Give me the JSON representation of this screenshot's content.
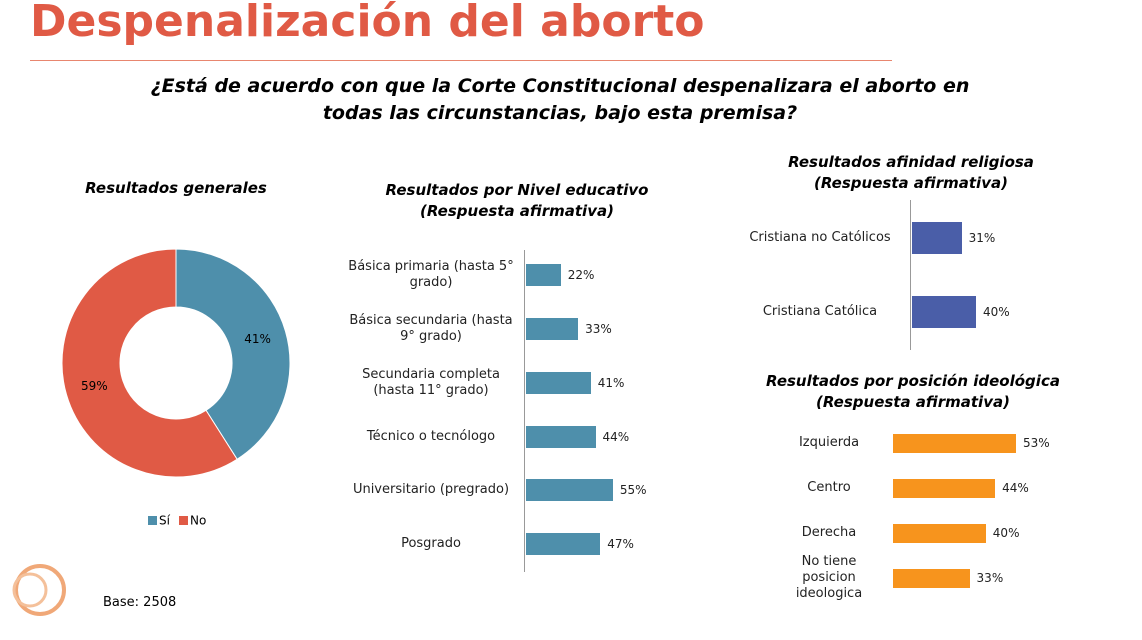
{
  "title": "Despenalización del aborto",
  "question": "¿Está de acuerdo con que la Corte Constitucional despenalizara el aborto en todas las circunstancias, bajo esta premisa?",
  "base": "Base: 2508",
  "chart_data": [
    {
      "type": "donut",
      "title": "Resultados generales",
      "categories": [
        "Sí",
        "No"
      ],
      "values": [
        41,
        59
      ],
      "value_labels": [
        "41%",
        "59%"
      ],
      "colors": [
        "#4e8fab",
        "#e05a45"
      ],
      "legend": "bottom"
    },
    {
      "type": "barh",
      "title": "Resultados por Nivel educativo",
      "subtitle": "(Respuesta afirmativa)",
      "categories": [
        "Básica primaria (hasta 5° grado)",
        "Básica secundaria (hasta 9° grado)",
        "Secundaria completa (hasta 11° grado)",
        "Técnico o tecnólogo",
        "Universitario (pregrado)",
        "Posgrado"
      ],
      "values": [
        22,
        33,
        41,
        44,
        55,
        47
      ],
      "value_labels": [
        "22%",
        "33%",
        "41%",
        "44%",
        "55%",
        "47%"
      ],
      "color": "#4e8fab"
    },
    {
      "type": "barh",
      "title": "Resultados afinidad religiosa",
      "subtitle": "(Respuesta afirmativa)",
      "categories": [
        "Cristiana no Católicos",
        "Cristiana Católica"
      ],
      "values": [
        31,
        40
      ],
      "value_labels": [
        "31%",
        "40%"
      ],
      "color": "#4a5ea8"
    },
    {
      "type": "barh",
      "title": "Resultados por posición ideológica",
      "subtitle": "(Respuesta afirmativa)",
      "categories": [
        "Izquierda",
        "Centro",
        "Derecha",
        "No tiene posicion ideologica"
      ],
      "values": [
        53,
        44,
        40,
        33
      ],
      "value_labels": [
        "53%",
        "44%",
        "40%",
        "33%"
      ],
      "color": "#f7941d"
    }
  ]
}
